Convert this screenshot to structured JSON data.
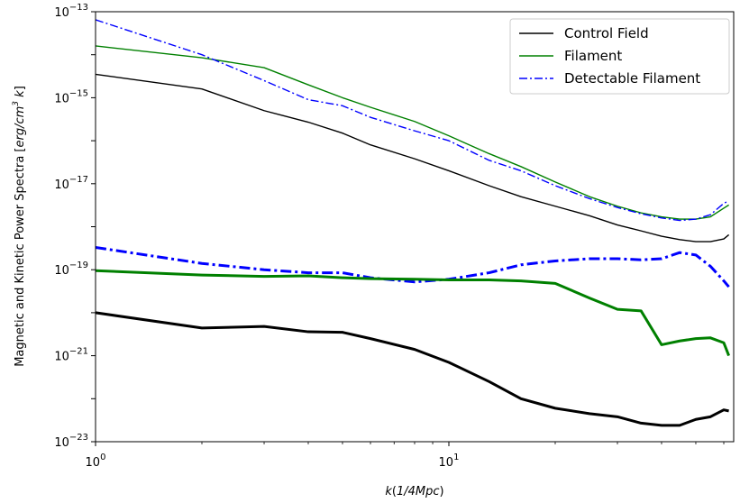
{
  "chart_data": {
    "type": "line",
    "title": "",
    "xlabel": "k(1/4Mpc)",
    "ylabel": "Magnetic and Kinetic Power Spectra  [erg/cm^3 k]",
    "xscale": "log",
    "yscale": "log",
    "xlim": [
      1,
      64
    ],
    "ylim": [
      1e-23,
      1e-13
    ],
    "legend_position": "top-right",
    "x_tick_labels": [
      {
        "value": 1,
        "base": "10",
        "exp": "0"
      },
      {
        "value": 10,
        "base": "10",
        "exp": "1"
      }
    ],
    "y_tick_labels": [
      {
        "value": 1e-23,
        "base": "10",
        "exp": "−23"
      },
      {
        "value": 1e-21,
        "base": "10",
        "exp": "−21"
      },
      {
        "value": 1e-19,
        "base": "10",
        "exp": "−19"
      },
      {
        "value": 1e-17,
        "base": "10",
        "exp": "−17"
      },
      {
        "value": 1e-15,
        "base": "10",
        "exp": "−15"
      },
      {
        "value": 1e-13,
        "base": "10",
        "exp": "−13"
      }
    ],
    "series": [
      {
        "name": "Control Field",
        "color": "#000000",
        "style": "solid",
        "width": "thin",
        "in_legend": true,
        "x": [
          1,
          2,
          3,
          4,
          5,
          6,
          8,
          10,
          13,
          16,
          20,
          25,
          30,
          35,
          40,
          45,
          50,
          55,
          60,
          62
        ],
        "y": [
          3.5e-15,
          1.6e-15,
          5e-16,
          2.7e-16,
          1.5e-16,
          8e-17,
          3.8e-17,
          2e-17,
          9e-18,
          5e-18,
          3e-18,
          1.8e-18,
          1.1e-18,
          8e-19,
          6e-19,
          5e-19,
          4.5e-19,
          4.5e-19,
          5.2e-19,
          6.5e-19
        ]
      },
      {
        "name": "Filament",
        "color": "#008000",
        "style": "solid",
        "width": "thin",
        "in_legend": true,
        "x": [
          1,
          2,
          3,
          4,
          5,
          6,
          8,
          10,
          13,
          16,
          20,
          25,
          30,
          35,
          40,
          45,
          50,
          55,
          60,
          62
        ],
        "y": [
          1.6e-14,
          8.5e-15,
          5e-15,
          2e-15,
          1e-15,
          6e-16,
          2.8e-16,
          1.3e-16,
          5e-17,
          2.5e-17,
          1.1e-17,
          5e-18,
          3e-18,
          2.1e-18,
          1.7e-18,
          1.5e-18,
          1.5e-18,
          1.7e-18,
          2.7e-18,
          3.2e-18
        ]
      },
      {
        "name": "Detectable Filament",
        "color": "#0000ff",
        "style": "dashdot",
        "width": "thin",
        "in_legend": true,
        "x": [
          1,
          2,
          3,
          4,
          5,
          6,
          8,
          10,
          13,
          16,
          20,
          25,
          30,
          35,
          40,
          45,
          50,
          55,
          60,
          62
        ],
        "y": [
          6.5e-14,
          1e-14,
          2.5e-15,
          9e-16,
          6.5e-16,
          3.5e-16,
          1.7e-16,
          1e-16,
          3.5e-17,
          2e-17,
          9e-18,
          4.5e-18,
          2.8e-18,
          2e-18,
          1.6e-18,
          1.4e-18,
          1.5e-18,
          1.9e-18,
          3.5e-18,
          4e-18
        ]
      },
      {
        "name": "",
        "color": "#0000ff",
        "style": "dashdot",
        "width": "thick",
        "in_legend": false,
        "x": [
          1,
          2,
          3,
          4,
          5,
          6,
          8,
          10,
          13,
          16,
          20,
          25,
          30,
          35,
          40,
          45,
          50,
          55,
          60,
          62
        ],
        "y": [
          3.3e-19,
          1.4e-19,
          1e-19,
          8.5e-20,
          8.5e-20,
          6.5e-20,
          5.2e-20,
          6e-20,
          8.5e-20,
          1.3e-19,
          1.6e-19,
          1.8e-19,
          1.8e-19,
          1.7e-19,
          1.8e-19,
          2.5e-19,
          2.2e-19,
          1.2e-19,
          5.5e-20,
          4e-20
        ]
      },
      {
        "name": "",
        "color": "#008000",
        "style": "solid",
        "width": "thick",
        "in_legend": false,
        "x": [
          1,
          2,
          3,
          4,
          5,
          6,
          8,
          10,
          13,
          16,
          20,
          25,
          30,
          35,
          40,
          45,
          50,
          55,
          60,
          62
        ],
        "y": [
          9.5e-20,
          7.5e-20,
          7e-20,
          7.2e-20,
          6.5e-20,
          6.2e-20,
          6e-20,
          5.8e-20,
          5.8e-20,
          5.5e-20,
          4.8e-20,
          2.2e-20,
          1.2e-20,
          1.1e-20,
          1.8e-21,
          2.2e-21,
          2.5e-21,
          2.6e-21,
          2e-21,
          1e-21
        ]
      },
      {
        "name": "",
        "color": "#000000",
        "style": "solid",
        "width": "thick",
        "in_legend": false,
        "x": [
          1,
          2,
          3,
          4,
          5,
          6,
          8,
          10,
          13,
          16,
          20,
          25,
          30,
          35,
          40,
          45,
          50,
          55,
          60,
          62
        ],
        "y": [
          1e-20,
          4.4e-21,
          4.8e-21,
          3.6e-21,
          3.5e-21,
          2.5e-21,
          1.4e-21,
          7e-22,
          2.5e-22,
          1e-22,
          6e-23,
          4.5e-23,
          3.8e-23,
          2.7e-23,
          2.4e-23,
          2.4e-23,
          3.3e-23,
          3.8e-23,
          5.5e-23,
          5.2e-23
        ]
      }
    ]
  }
}
